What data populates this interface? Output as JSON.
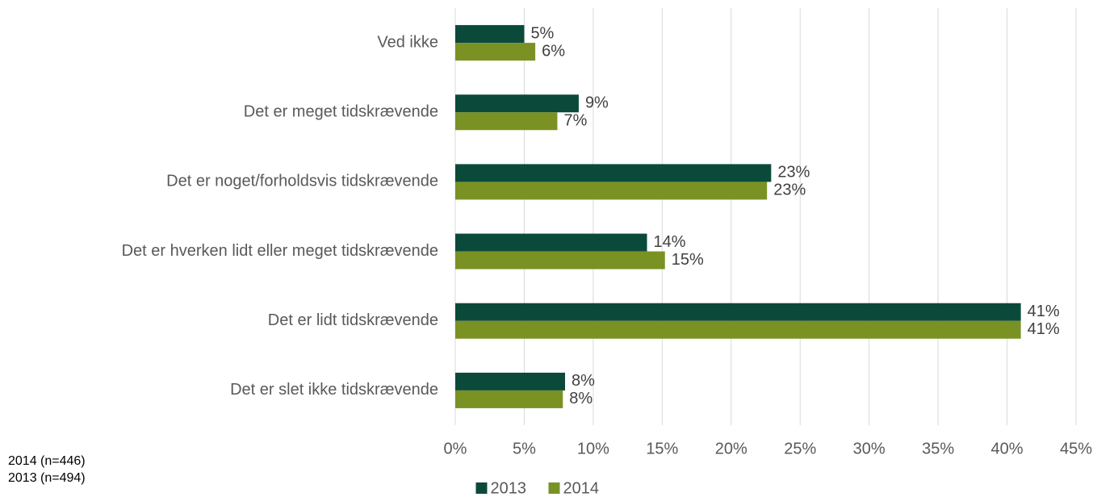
{
  "chart_data": {
    "type": "hbar",
    "categories": [
      "Ved ikke",
      "Det er meget tidskrævende",
      "Det er noget/forholdsvis tidskrævende",
      "Det er hverken lidt eller meget tidskrævende",
      "Det er lidt tidskrævende",
      "Det er slet ikke tidskrævende"
    ],
    "series": [
      {
        "name": "2013",
        "color": "#0b4a3b",
        "values": [
          5,
          8.95,
          22.9,
          13.9,
          41,
          7.96
        ],
        "value_labels": [
          "5%",
          "9%",
          "23%",
          "14%",
          "41%",
          "8%"
        ]
      },
      {
        "name": "2014",
        "color": "#7a9224",
        "values": [
          5.8,
          7.4,
          22.6,
          15.2,
          41,
          7.8
        ],
        "value_labels": [
          "6%",
          "7%",
          "23%",
          "15%",
          "41%",
          "8%"
        ]
      }
    ],
    "xlim": [
      0,
      45
    ],
    "xticks": [
      {
        "value": 0,
        "label": "0%"
      },
      {
        "value": 5,
        "label": "5%"
      },
      {
        "value": 10,
        "label": "10%"
      },
      {
        "value": 15,
        "label": "15%"
      },
      {
        "value": 20,
        "label": "20%"
      },
      {
        "value": 25,
        "label": "25%"
      },
      {
        "value": 30,
        "label": "30%"
      },
      {
        "value": 35,
        "label": "35%"
      },
      {
        "value": 40,
        "label": "40%"
      },
      {
        "value": 45,
        "label": "45%"
      }
    ],
    "grid": true,
    "legend": "bottom",
    "notes": [
      "2014 (n=446)",
      "2013 (n=494)"
    ]
  }
}
